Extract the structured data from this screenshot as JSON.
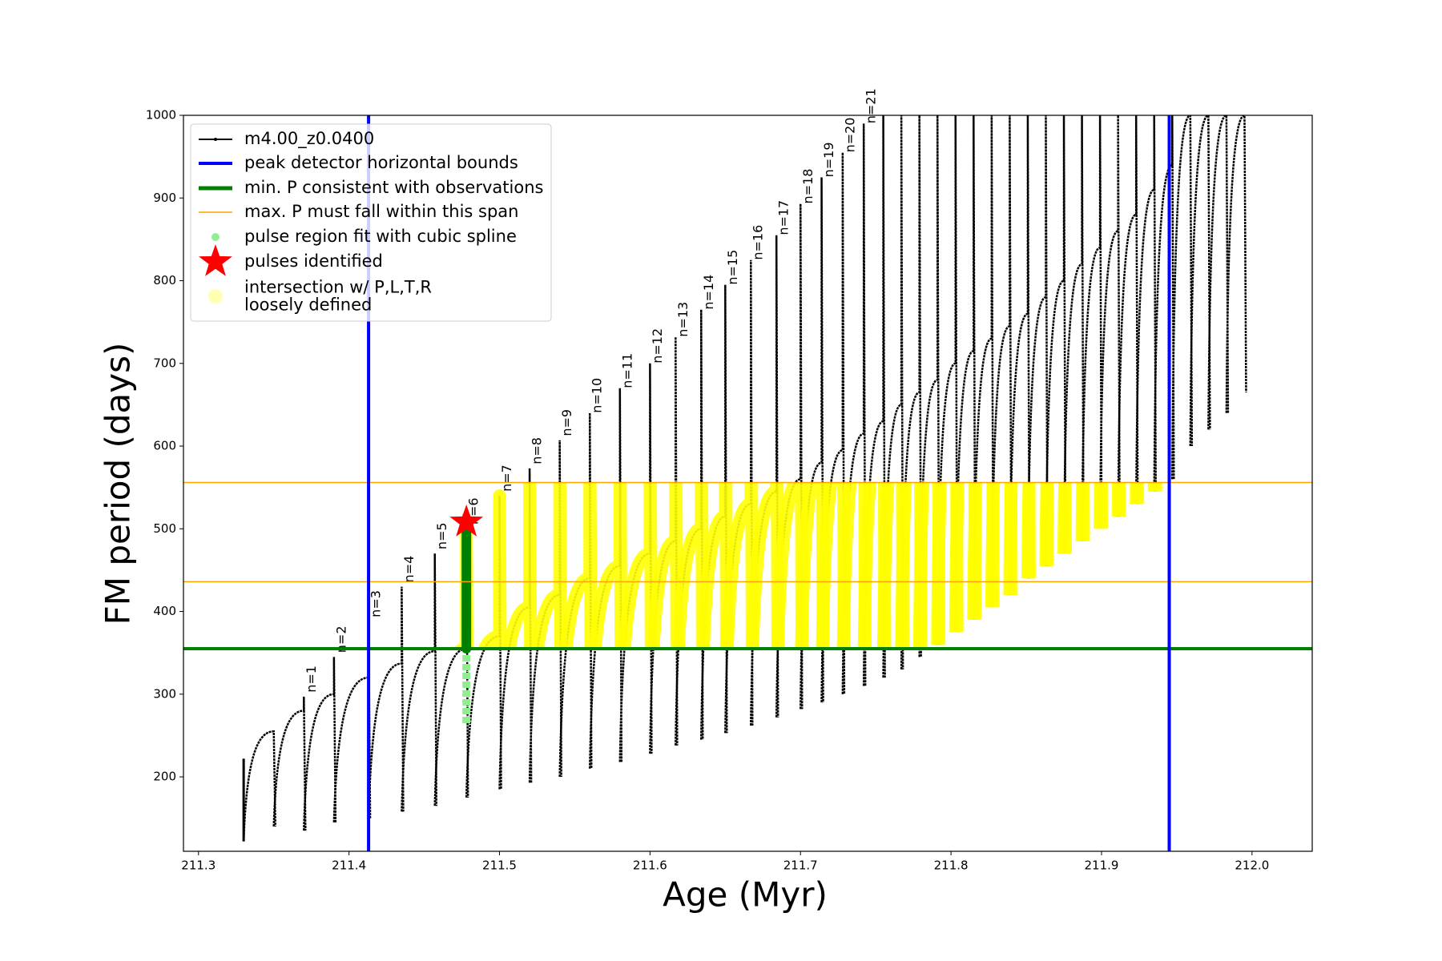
{
  "chart_data": {
    "type": "pulse-line",
    "x_label": "Age (Myr)",
    "y_label": "FM period (days)",
    "xlim": [
      211.29,
      212.04
    ],
    "ylim": [
      110,
      1000
    ],
    "xticks": [
      211.3,
      211.4,
      211.5,
      211.6,
      211.7,
      211.8,
      211.9,
      {
        "value": 212,
        "label": "212.0"
      }
    ],
    "yticks": [
      200,
      300,
      400,
      500,
      600,
      700,
      800,
      900,
      1000
    ],
    "series": {
      "name": "m4.00_z0.0400",
      "color": "#000000",
      "start_x": 211.33,
      "start_high": 222,
      "start_low": 122,
      "x": [
        211.35,
        211.37,
        211.39,
        211.413,
        211.435,
        211.457,
        211.478,
        211.5,
        211.52,
        211.54,
        211.56,
        211.58,
        211.6,
        211.617,
        211.634,
        211.65,
        211.667,
        211.684,
        211.7,
        211.714,
        211.728,
        211.742,
        211.755,
        211.767,
        211.779,
        211.791,
        211.803,
        211.815,
        211.827,
        211.839,
        211.851,
        211.863,
        211.875,
        211.887,
        211.899,
        211.911,
        211.923,
        211.935,
        211.947,
        211.959,
        211.971,
        211.983,
        211.995
      ],
      "hump": [
        255,
        280,
        300,
        320,
        337,
        352,
        355,
        370,
        405,
        420,
        440,
        455,
        470,
        485,
        500,
        515,
        530,
        545,
        560,
        580,
        595,
        615,
        630,
        650,
        665,
        680,
        700,
        715,
        730,
        745,
        760,
        780,
        800,
        820,
        840,
        860,
        880,
        910,
        940,
        1000,
        1000,
        1000,
        1000
      ],
      "spike": [
        255,
        297,
        345,
        388,
        430,
        470,
        500,
        540,
        573,
        607,
        640,
        670,
        700,
        732,
        765,
        795,
        825,
        855,
        893,
        925,
        955,
        990,
        1000,
        1000,
        1000,
        1000,
        1000,
        1000,
        1000,
        1000,
        1000,
        1000,
        1000,
        1000,
        1000,
        1000,
        1000,
        1000,
        1000,
        1000,
        1000,
        1000,
        1000
      ],
      "trough": [
        140,
        135,
        145,
        150,
        158,
        165,
        175,
        185,
        193,
        200,
        210,
        218,
        228,
        238,
        245,
        253,
        262,
        272,
        282,
        290,
        300,
        310,
        320,
        330,
        345,
        360,
        375,
        390,
        405,
        420,
        440,
        455,
        470,
        485,
        500,
        515,
        530,
        545,
        560,
        600,
        620,
        640,
        665
      ],
      "labels": [
        null,
        "n=1",
        "n=2",
        "n=3",
        "n=4",
        "n=5",
        "n=6",
        "n=7",
        "n=8",
        "n=9",
        "n=10",
        "n=11",
        "n=12",
        "n=13",
        "n=14",
        "n=15",
        "n=16",
        "n=17",
        "n=18",
        "n=19",
        "n=20",
        "n=21",
        null,
        null,
        null,
        null,
        null,
        null,
        null,
        null,
        null,
        null,
        null,
        null,
        null,
        null,
        null,
        null,
        null,
        null,
        null,
        null,
        null
      ]
    },
    "bounds": {
      "name": "peak detector horizontal bounds",
      "color": "#0000ff",
      "values": [
        211.413,
        211.945
      ]
    },
    "min_period": {
      "name": "min. P consistent with observations",
      "color": "#008000",
      "value": 355
    },
    "max_period": {
      "name": "max. P must fall within this span",
      "color": "#ffa500",
      "values": [
        436,
        556
      ]
    },
    "spline": {
      "name": "pulse region fit with cubic spline",
      "color": "#90ee90",
      "x": 211.478,
      "low": 265,
      "high": 520
    },
    "pulses": {
      "name": "pulses identified",
      "color": "#ff0000",
      "x": 211.478,
      "y": 508
    },
    "intersection": {
      "name": "intersection w/ P,L,T,R\nloosely defined",
      "color": "#ffff00",
      "xrange": [
        211.47,
        211.95
      ]
    }
  }
}
